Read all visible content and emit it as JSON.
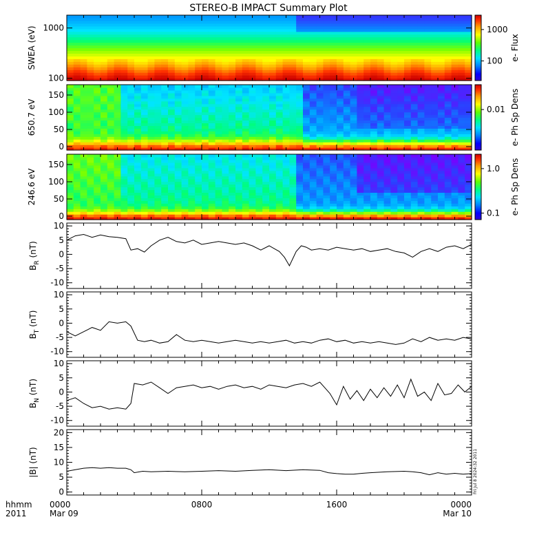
{
  "title": "STEREO-B IMPACT Summary Plot",
  "footer": {
    "row1_label": "hhmm",
    "row2_label": "2011",
    "x_ticks": [
      "0000",
      "0800",
      "1600",
      "0000"
    ],
    "x_dates": [
      "Mar 09",
      "",
      "",
      "Mar 10"
    ]
  },
  "timestamp": "Fri Jul  8 2024:32 2011",
  "colors": {
    "line": "#000000",
    "colormap": [
      "#7a00ff",
      "#2e3cff",
      "#0099ff",
      "#00e5ff",
      "#00ff77",
      "#7cff00",
      "#ffff00",
      "#ffa500",
      "#ff3300",
      "#cc0000"
    ]
  },
  "chart_data": [
    {
      "type": "heatmap",
      "id": "swea",
      "ylabel": "SWEA (eV)",
      "y_scale": "log",
      "ylim": [
        90,
        1800
      ],
      "y_ticks": [
        "1000",
        "100"
      ],
      "x_range_hours": [
        0,
        24
      ],
      "colorbar": {
        "label": "e- Flux",
        "scale": "log",
        "ticks": [
          "1000",
          "100"
        ]
      }
    },
    {
      "type": "heatmap",
      "id": "pad650",
      "ylabel": "650.7 eV",
      "ylim": [
        -10,
        180
      ],
      "y_ticks": [
        "150",
        "100",
        "50",
        "0"
      ],
      "x_range_hours": [
        0,
        24
      ],
      "colorbar": {
        "label": "e- Ph Sp Dens",
        "scale": "log",
        "ticks": [
          "0.01"
        ]
      }
    },
    {
      "type": "heatmap",
      "id": "pad246",
      "ylabel": "246.6 eV",
      "ylim": [
        -10,
        180
      ],
      "y_ticks": [
        "150",
        "100",
        "50",
        "0"
      ],
      "x_range_hours": [
        0,
        24
      ],
      "colorbar": {
        "label": "e- Ph Sp Dens",
        "scale": "log",
        "ticks": [
          "1.0",
          "0.1"
        ]
      }
    },
    {
      "type": "line",
      "id": "br",
      "ylabel": "B",
      "ylabel_sub": "R",
      "ylabel_unit": " (nT)",
      "ylim": [
        -12,
        11
      ],
      "y_ticks": [
        "10",
        "5",
        "0",
        "-5",
        "-10"
      ],
      "x": [
        0,
        0.5,
        1,
        1.5,
        2,
        2.5,
        3,
        3.5,
        3.8,
        4.2,
        4.6,
        5,
        5.5,
        6,
        6.5,
        7,
        7.5,
        8,
        8.5,
        9,
        9.5,
        10,
        10.5,
        11,
        11.5,
        12,
        12.3,
        12.6,
        12.9,
        13.2,
        13.4,
        13.6,
        13.9,
        14.2,
        14.5,
        15,
        15.5,
        16,
        16.5,
        17,
        17.5,
        18,
        18.5,
        19,
        19.5,
        20,
        20.5,
        21,
        21.5,
        22,
        22.5,
        23,
        23.5,
        24
      ],
      "y": [
        5.0,
        6.5,
        7.0,
        6.0,
        6.8,
        6.2,
        6.0,
        5.5,
        1.5,
        2.0,
        0.8,
        3.0,
        5.0,
        6.0,
        4.5,
        4.0,
        5.0,
        3.5,
        4.0,
        4.5,
        4.0,
        3.5,
        4.0,
        3.0,
        1.5,
        3.0,
        2.0,
        1.0,
        -1.0,
        -4.0,
        -1.5,
        1.0,
        3.0,
        2.5,
        1.5,
        2.0,
        1.5,
        2.5,
        2.0,
        1.5,
        2.0,
        1.0,
        1.5,
        2.0,
        1.0,
        0.5,
        -1.0,
        1.0,
        2.0,
        1.0,
        2.5,
        3.0,
        2.0,
        3.5
      ]
    },
    {
      "type": "line",
      "id": "bt",
      "ylabel": "B",
      "ylabel_sub": "T",
      "ylabel_unit": " (nT)",
      "ylim": [
        -12,
        11
      ],
      "y_ticks": [
        "10",
        "5",
        "0",
        "-5",
        "-10"
      ],
      "x": [
        0,
        0.5,
        1,
        1.5,
        2,
        2.5,
        3,
        3.5,
        3.8,
        4.2,
        4.6,
        5,
        5.5,
        6,
        6.5,
        7,
        7.5,
        8,
        8.5,
        9,
        9.5,
        10,
        10.5,
        11,
        11.5,
        12,
        12.5,
        13,
        13.5,
        14,
        14.5,
        15,
        15.5,
        16,
        16.5,
        17,
        17.5,
        18,
        18.5,
        19,
        19.5,
        20,
        20.5,
        21,
        21.5,
        22,
        22.5,
        23,
        23.5,
        24
      ],
      "y": [
        -3.0,
        -4.5,
        -3.0,
        -1.5,
        -2.5,
        0.5,
        0.0,
        0.5,
        -1.0,
        -6.0,
        -6.5,
        -6.0,
        -7.0,
        -6.5,
        -4.0,
        -6.0,
        -6.5,
        -6.0,
        -6.5,
        -7.0,
        -6.5,
        -6.0,
        -6.5,
        -7.0,
        -6.5,
        -7.0,
        -6.5,
        -6.0,
        -7.0,
        -6.5,
        -7.0,
        -6.0,
        -5.5,
        -6.5,
        -6.0,
        -7.0,
        -6.5,
        -7.0,
        -6.5,
        -7.0,
        -7.5,
        -7.0,
        -5.5,
        -6.5,
        -5.0,
        -6.0,
        -5.5,
        -6.0,
        -5.0,
        -5.5
      ]
    },
    {
      "type": "line",
      "id": "bn",
      "ylabel": "B",
      "ylabel_sub": "N",
      "ylabel_unit": " (nT)",
      "ylim": [
        -12,
        11
      ],
      "y_ticks": [
        "10",
        "5",
        "0",
        "-5",
        "-10"
      ],
      "x": [
        0,
        0.5,
        1,
        1.5,
        2,
        2.5,
        3,
        3.5,
        3.8,
        4.0,
        4.5,
        5,
        5.5,
        6,
        6.5,
        7,
        7.5,
        8,
        8.5,
        9,
        9.5,
        10,
        10.5,
        11,
        11.5,
        12,
        12.5,
        13,
        13.5,
        14,
        14.5,
        15,
        15.3,
        15.6,
        16,
        16.4,
        16.8,
        17.2,
        17.6,
        18,
        18.4,
        18.8,
        19.2,
        19.6,
        20,
        20.4,
        20.8,
        21.2,
        21.6,
        22,
        22.4,
        22.8,
        23.2,
        23.6,
        24
      ],
      "y": [
        -3.0,
        -2.0,
        -4.0,
        -5.5,
        -5.0,
        -6.0,
        -5.5,
        -6.0,
        -4.0,
        3.0,
        2.5,
        3.5,
        1.5,
        -0.5,
        1.5,
        2.0,
        2.5,
        1.5,
        2.0,
        1.0,
        2.0,
        2.5,
        1.5,
        2.0,
        1.0,
        2.5,
        2.0,
        1.5,
        2.5,
        3.0,
        2.0,
        3.5,
        1.5,
        -0.5,
        -4.5,
        2.0,
        -2.5,
        0.5,
        -3.0,
        1.0,
        -2.0,
        1.5,
        -1.5,
        2.5,
        -2.0,
        4.5,
        -1.5,
        0.0,
        -3.0,
        3.0,
        -1.0,
        -0.5,
        2.5,
        0.0,
        2.0
      ]
    },
    {
      "type": "line",
      "id": "bmag",
      "ylabel": "|B| (nT)",
      "ylabel_sub": "",
      "ylabel_unit": "",
      "ylim": [
        -1,
        21
      ],
      "y_ticks": [
        "20",
        "15",
        "10",
        "5",
        "0"
      ],
      "x": [
        0,
        0.5,
        1,
        1.5,
        2,
        2.5,
        3,
        3.5,
        3.8,
        4.0,
        4.5,
        5,
        6,
        7,
        8,
        9,
        10,
        11,
        12,
        13,
        14,
        15,
        15.5,
        16,
        16.5,
        17,
        17.5,
        18,
        19,
        20,
        20.5,
        21,
        21.5,
        22,
        22.5,
        23,
        23.5,
        24
      ],
      "y": [
        7.0,
        7.5,
        8.0,
        8.2,
        8.0,
        8.2,
        8.0,
        8.0,
        7.5,
        6.5,
        7.0,
        6.8,
        7.0,
        6.8,
        7.0,
        7.2,
        7.0,
        7.3,
        7.5,
        7.2,
        7.5,
        7.3,
        6.5,
        6.2,
        6.0,
        6.0,
        6.3,
        6.5,
        6.8,
        7.0,
        6.8,
        6.5,
        5.8,
        6.5,
        6.0,
        6.3,
        6.0,
        6.2
      ]
    }
  ]
}
